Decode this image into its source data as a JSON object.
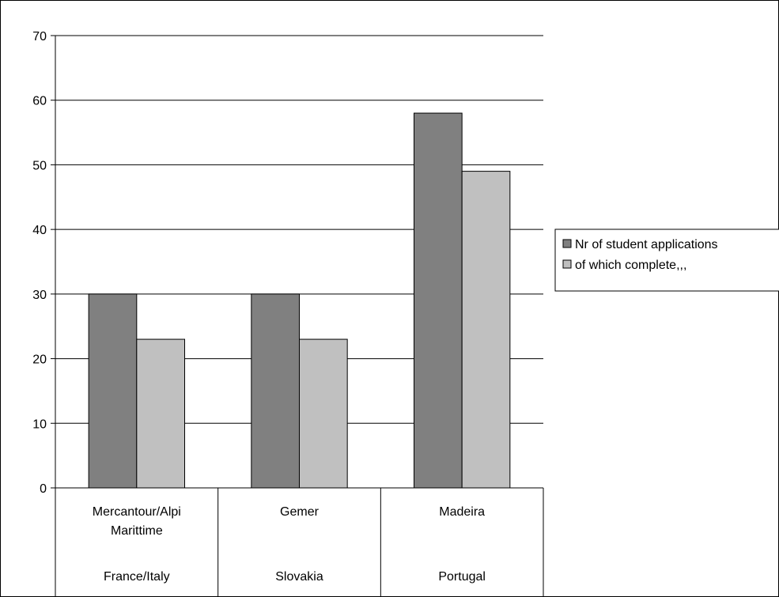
{
  "chart_data": {
    "type": "bar",
    "categories": [
      {
        "name": [
          "Mercantour/Alpi",
          "Marittime"
        ],
        "group": "France/Italy"
      },
      {
        "name": [
          "Gemer"
        ],
        "group": "Slovakia"
      },
      {
        "name": [
          "Madeira"
        ],
        "group": "Portugal"
      }
    ],
    "series": [
      {
        "name": "Nr of student applications",
        "values": [
          30,
          30,
          58
        ],
        "color": "#808080"
      },
      {
        "name": "of which complete,,,",
        "values": [
          23,
          23,
          49
        ],
        "color": "#c0c0c0"
      }
    ],
    "ylim": [
      0,
      70
    ],
    "yticks": [
      0,
      10,
      20,
      30,
      40,
      50,
      60,
      70
    ],
    "grid": true,
    "legend_position": "right"
  }
}
